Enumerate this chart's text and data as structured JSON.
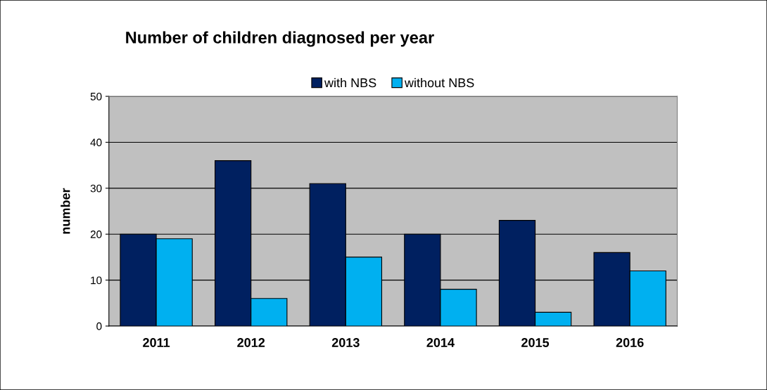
{
  "chart_data": {
    "type": "bar",
    "title": "Number of children diagnosed per year",
    "ylabel": "number",
    "categories": [
      "2011",
      "2012",
      "2013",
      "2014",
      "2015",
      "2016"
    ],
    "series": [
      {
        "name": "with NBS",
        "color": "#002060",
        "values": [
          20,
          36,
          31,
          20,
          23,
          16
        ]
      },
      {
        "name": "without NBS",
        "color": "#00b0f0",
        "values": [
          19,
          6,
          15,
          8,
          3,
          12
        ]
      }
    ],
    "ylim": [
      0,
      50
    ],
    "yticks": [
      0,
      10,
      20,
      30,
      40,
      50
    ],
    "grid": "y",
    "legend": "top"
  }
}
